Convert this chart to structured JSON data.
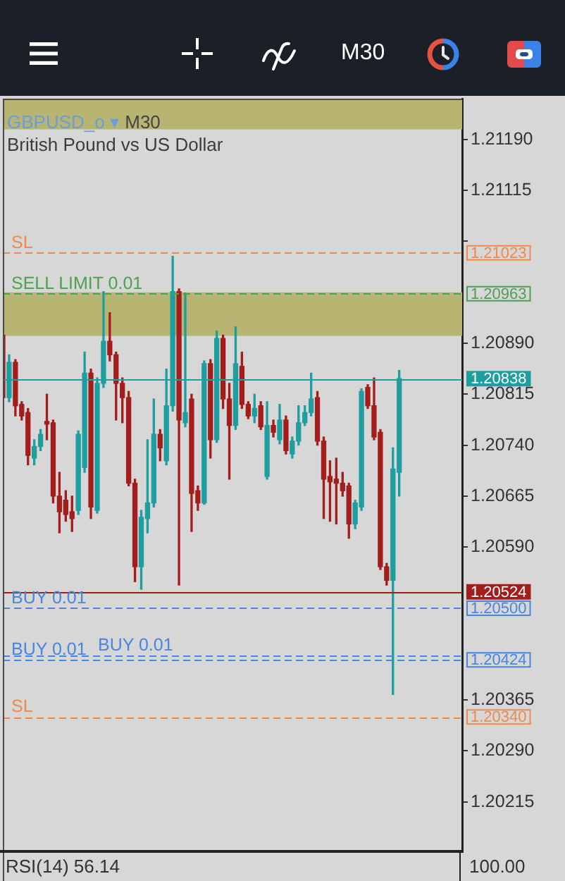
{
  "chart_data": [
    {
      "type": "other",
      "title": "M30"
    },
    {
      "type": "candlestick",
      "title": "GBPUSD_o ▾ M30",
      "subtitle": "British Pound vs US Dollar",
      "annotations": [
        "1.21023",
        "1.20963",
        "1.20838",
        "1.20524",
        "1.20500",
        "1.20424",
        "1.20340"
      ],
      "categories": [
        null,
        null,
        null,
        null,
        null,
        null,
        null,
        null,
        null,
        null,
        null,
        null,
        null,
        null,
        null,
        null,
        null,
        null,
        null,
        null,
        null,
        null,
        null,
        null,
        null,
        null,
        null,
        null,
        null,
        null,
        null,
        null,
        null,
        null,
        null,
        null,
        null,
        null,
        null,
        null,
        null,
        null,
        null,
        null,
        null,
        null,
        null,
        null,
        null,
        null,
        null,
        null,
        null,
        null,
        null,
        null,
        null,
        null,
        null,
        null,
        null,
        null,
        null,
        null,
        null,
        null,
        null,
        null,
        null,
        null,
        null,
        null,
        null,
        null
      ],
      "ohlc": [
        [
          1.20902,
          1.20906,
          1.20804,
          1.2081
        ],
        [
          1.2081,
          1.20873,
          1.20804,
          1.20862
        ],
        [
          1.20862,
          1.20866,
          1.20783,
          1.20798
        ],
        [
          1.208,
          1.20804,
          1.20777,
          1.20783
        ],
        [
          1.20788,
          1.20794,
          1.20711,
          1.20725
        ],
        [
          1.20721,
          1.20748,
          1.20711,
          1.20738
        ],
        [
          1.20738,
          1.20763,
          1.20732,
          1.20756
        ],
        [
          1.20775,
          1.20815,
          1.20748,
          1.20771
        ],
        [
          1.20773,
          1.20777,
          1.20655,
          1.20665
        ],
        [
          1.20665,
          1.207,
          1.20611,
          1.20642
        ],
        [
          1.20659,
          1.20673,
          1.20628,
          1.20638
        ],
        [
          1.20642,
          1.20665,
          1.20613,
          1.20632
        ],
        [
          1.20644,
          1.20761,
          1.20638,
          1.20756
        ],
        [
          1.20707,
          1.20877,
          1.207,
          1.20846
        ],
        [
          1.20846,
          1.20852,
          1.20632,
          1.20649
        ],
        [
          1.20644,
          1.20839,
          1.2064,
          1.20831
        ],
        [
          1.20831,
          1.20966,
          1.20825,
          1.20893
        ],
        [
          1.20893,
          1.20935,
          1.20864,
          1.20873
        ],
        [
          1.20873,
          1.20877,
          1.20777,
          1.20831
        ],
        [
          1.20831,
          1.20839,
          1.20773,
          1.2081
        ],
        [
          1.2081,
          1.20819,
          1.2068,
          1.20684
        ],
        [
          1.20684,
          1.2069,
          1.20539,
          1.20561
        ],
        [
          1.20561,
          1.20644,
          1.20528,
          1.20634
        ],
        [
          1.20632,
          1.20748,
          1.20611,
          1.20655
        ],
        [
          1.20655,
          1.20808,
          1.20649,
          1.20756
        ],
        [
          1.20756,
          1.20763,
          1.20717,
          1.20736
        ],
        [
          1.20717,
          1.20852,
          1.20711,
          1.20798
        ],
        [
          1.20798,
          1.21018,
          1.2079,
          1.20966
        ],
        [
          1.20966,
          1.2097,
          1.20534,
          1.20777
        ],
        [
          1.20773,
          1.20964,
          1.20767,
          1.20788
        ],
        [
          1.20808,
          1.20815,
          1.20613,
          1.20669
        ],
        [
          1.20673,
          1.2068,
          1.20644,
          1.20655
        ],
        [
          1.20655,
          1.20864,
          1.20653,
          1.2086
        ],
        [
          1.2086,
          1.20866,
          1.20721,
          1.20748
        ],
        [
          1.20748,
          1.20908,
          1.20744,
          1.20897
        ],
        [
          1.20897,
          1.20902,
          1.20794,
          1.20808
        ],
        [
          1.20808,
          1.20831,
          1.2069,
          1.20769
        ],
        [
          1.20769,
          1.20914,
          1.20763,
          1.2086
        ],
        [
          1.20856,
          1.20877,
          1.20794,
          1.208
        ],
        [
          1.208,
          1.20804,
          1.20779,
          1.20783
        ],
        [
          1.20783,
          1.20815,
          1.20773,
          1.20794
        ],
        [
          1.20798,
          1.20804,
          1.20763,
          1.20767
        ],
        [
          1.20694,
          1.20804,
          1.2069,
          1.20769
        ],
        [
          1.20769,
          1.20777,
          1.20752,
          1.20759
        ],
        [
          1.20748,
          1.208,
          1.20742,
          1.20777
        ],
        [
          1.20777,
          1.20783,
          1.20727,
          1.20732
        ],
        [
          1.20727,
          1.20752,
          1.20721,
          1.20746
        ],
        [
          1.20746,
          1.20798,
          1.2074,
          1.20773
        ],
        [
          1.20773,
          1.20798,
          1.20769,
          1.20788
        ],
        [
          1.20788,
          1.20846,
          1.20783,
          1.20808
        ],
        [
          1.2081,
          1.20819,
          1.2074,
          1.20746
        ],
        [
          1.20746,
          1.20752,
          1.20632,
          1.2069
        ],
        [
          1.20694,
          1.20717,
          1.20628,
          1.20686
        ],
        [
          1.2069,
          1.20721,
          1.20624,
          1.20684
        ],
        [
          1.20684,
          1.207,
          1.20665,
          1.20673
        ],
        [
          1.2068,
          1.20684,
          1.20603,
          1.20624
        ],
        [
          1.20624,
          1.20659,
          1.20617,
          1.20655
        ],
        [
          1.20649,
          1.20823,
          1.20644,
          1.20819
        ],
        [
          1.20825,
          1.20829,
          1.20794,
          1.20798
        ],
        [
          1.20798,
          1.20839,
          1.20748,
          1.20752
        ],
        [
          1.20759,
          1.20763,
          1.20557,
          1.20561
        ],
        [
          1.20561,
          1.20566,
          1.20534,
          1.20541
        ],
        [
          1.20541,
          1.20736,
          1.20373,
          1.20705
        ],
        [
          1.207,
          1.2085,
          1.20665,
          1.20838
        ],
        null,
        null,
        null,
        null,
        null,
        null,
        null,
        null,
        null,
        null
      ],
      "colors": [
        "#a41d1d",
        "#1f9ea0",
        "#a41d1d",
        "#a41d1d",
        "#a41d1d",
        "#1f9ea0",
        "#1f9ea0",
        "#a41d1d",
        "#a41d1d",
        "#a41d1d",
        "#a41d1d",
        "#a41d1d",
        "#1f9ea0",
        "#1f9ea0",
        "#a41d1d",
        "#1f9ea0",
        "#1f9ea0",
        "#a41d1d",
        "#a41d1d",
        "#a41d1d",
        "#a41d1d",
        "#a41d1d",
        "#1f9ea0",
        "#1f9ea0",
        "#1f9ea0",
        "#a41d1d",
        "#1f9ea0",
        "#1f9ea0",
        "#a41d1d",
        "#1f9ea0",
        "#a41d1d",
        "#a41d1d",
        "#1f9ea0",
        "#a41d1d",
        "#1f9ea0",
        "#a41d1d",
        "#a41d1d",
        "#1f9ea0",
        "#a41d1d",
        "#a41d1d",
        "#1f9ea0",
        "#a41d1d",
        "#1f9ea0",
        "#a41d1d",
        "#1f9ea0",
        "#a41d1d",
        "#1f9ea0",
        "#1f9ea0",
        "#1f9ea0",
        "#1f9ea0",
        "#a41d1d",
        "#a41d1d",
        "#a41d1d",
        "#a41d1d",
        "#a41d1d",
        "#a41d1d",
        "#1f9ea0",
        "#1f9ea0",
        "#a41d1d",
        "#a41d1d",
        "#a41d1d",
        "#a41d1d",
        "#1f9ea0",
        "#1f9ea0",
        null,
        null,
        null,
        null,
        null,
        null,
        null,
        null,
        null,
        null
      ],
      "ylim": [
        1.2014,
        1.2125
      ],
      "yticks": [
        {
          "value": 1.2119,
          "label": "1.21190"
        },
        {
          "value": 1.21115,
          "label": "1.21115"
        },
        {
          "value": 1.2104,
          "label": null
        },
        {
          "value": 1.2089,
          "label": "1.20890"
        },
        {
          "value": 1.20815,
          "label": "1.20815"
        },
        {
          "value": 1.2074,
          "label": "1.20740"
        },
        {
          "value": 1.20665,
          "label": "1.20665"
        },
        {
          "value": 1.2059,
          "label": "1.20590"
        },
        {
          "value": 1.20365,
          "label": "1.20365"
        },
        {
          "value": 1.2029,
          "label": "1.20290"
        },
        {
          "value": 1.20215,
          "label": "1.20215"
        }
      ],
      "bands": [
        {
          "axis": "y",
          "from": 1.20901,
          "to": 1.20965,
          "color": "#b8b572"
        },
        {
          "axis": "y",
          "from": 1.21205,
          "to": 1.2125,
          "color": "#b8b572"
        }
      ],
      "ref_lines": [
        {
          "axis": "y",
          "value": 1.21023,
          "label": "SL",
          "color": "#ef8a4c",
          "line_style": "dashed"
        },
        {
          "axis": "y",
          "value": 1.20963,
          "label": "SELL LIMIT 0.01",
          "color": "#4fa052",
          "line_style": "dashed"
        },
        {
          "axis": "y",
          "value": 1.20838,
          "color": "#1f9ea0",
          "line_style": "solid"
        },
        {
          "axis": "y",
          "value": 1.20524,
          "color": "#a41d1d",
          "line_style": "solid"
        },
        {
          "axis": "y",
          "value": 1.205,
          "label": "BUY 0.01",
          "color": "#4a86df",
          "line_style": "dashed"
        },
        {
          "axis": "y",
          "value": 1.20424,
          "label": "BUY 0.01",
          "color": "#4a86df",
          "line_style": "dashed"
        },
        {
          "axis": "y",
          "value": 1.2034,
          "label": "SL",
          "color": "#ef8a4c",
          "line_style": "dashed"
        },
        {
          "axis": "y",
          "value": 1.2043,
          "label": "BUY 0.01",
          "color": "#4a86df",
          "line_style": "dashed"
        }
      ]
    },
    {
      "type": "other",
      "title": "RSI(14) 56.14",
      "annotations": [
        "100.00"
      ]
    }
  ]
}
